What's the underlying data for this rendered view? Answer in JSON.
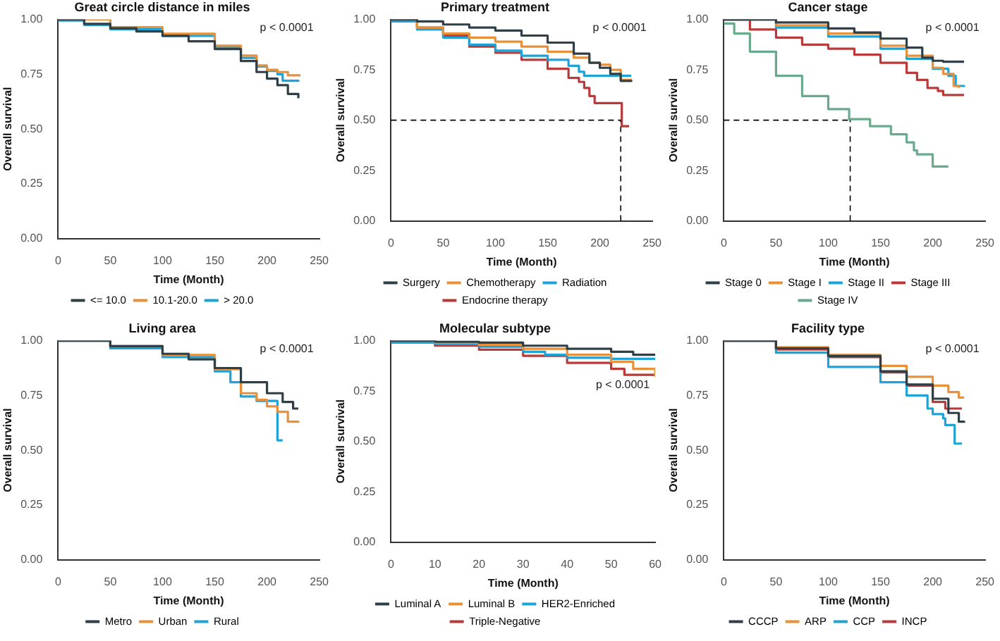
{
  "chart_data": [
    {
      "type": "step",
      "title": "Great circle distance in miles",
      "xlabel": "Time (Month)",
      "ylabel": "Overall survival",
      "xlim": [
        0,
        250
      ],
      "xticks": [
        0,
        50,
        100,
        150,
        200,
        250
      ],
      "ylim": [
        0,
        1
      ],
      "yticks": [
        {
          "value": 0,
          "label": "0.00"
        },
        {
          "value": 0.25,
          "label": "0.25"
        },
        {
          "value": 0.5,
          "label": "0.50"
        },
        {
          "value": 0.75,
          "label": "0.75"
        },
        {
          "value": 1,
          "label": "1.00"
        }
      ],
      "grid": false,
      "legend": "bottom",
      "annotations": [
        "p < 0.0001"
      ],
      "series": [
        {
          "name": "<= 10.0",
          "color": "#2f3f47",
          "x": [
            0,
            25,
            50,
            75,
            100,
            125,
            150,
            175,
            190,
            200,
            210,
            220,
            230
          ],
          "values": [
            1,
            0.98,
            0.96,
            0.945,
            0.925,
            0.9,
            0.865,
            0.81,
            0.76,
            0.73,
            0.7,
            0.66,
            0.64
          ]
        },
        {
          "name": "10.1-20.0",
          "color": "#e8913a",
          "x": [
            0,
            50,
            100,
            150,
            175,
            190,
            200,
            210,
            220,
            232
          ],
          "values": [
            1,
            0.965,
            0.935,
            0.88,
            0.835,
            0.79,
            0.77,
            0.76,
            0.745,
            0.745
          ]
        },
        {
          "name": "> 20.0",
          "color": "#1fa3d6",
          "x": [
            0,
            25,
            50,
            100,
            150,
            175,
            190,
            200,
            210,
            215,
            230
          ],
          "values": [
            0.995,
            0.975,
            0.955,
            0.925,
            0.872,
            0.825,
            0.785,
            0.765,
            0.75,
            0.72,
            0.715
          ]
        }
      ]
    },
    {
      "type": "step",
      "title": "Primary treatment",
      "xlabel": "Time (Month)",
      "ylabel": "Overall survival",
      "xlim": [
        0,
        250
      ],
      "xticks": [
        0,
        50,
        100,
        150,
        200,
        250
      ],
      "ylim": [
        0,
        1
      ],
      "yticks": [
        {
          "value": 0,
          "label": "0.00"
        },
        {
          "value": 0.25,
          "label": "0.25"
        },
        {
          "value": 0.5,
          "label": "0.50"
        },
        {
          "value": 0.75,
          "label": "0.75"
        },
        {
          "value": 1,
          "label": "1.00"
        }
      ],
      "grid": false,
      "legend": "bottom",
      "annotations": [
        "p < 0.0001"
      ],
      "ref_lines": [
        {
          "axis": "y",
          "value": 0.5,
          "line_style": "dashed"
        },
        {
          "axis": "x",
          "value": 220,
          "line_style": "dashed"
        }
      ],
      "series": [
        {
          "name": "Surgery",
          "color": "#2f3f47",
          "x": [
            0,
            25,
            50,
            75,
            100,
            125,
            150,
            175,
            190,
            200,
            210,
            220,
            230
          ],
          "values": [
            1,
            0.99,
            0.975,
            0.96,
            0.945,
            0.92,
            0.885,
            0.83,
            0.785,
            0.76,
            0.73,
            0.695,
            0.69
          ]
        },
        {
          "name": "Chemotherapy",
          "color": "#e8913a",
          "x": [
            0,
            25,
            50,
            75,
            100,
            125,
            150,
            175,
            190,
            200,
            210,
            220,
            230
          ],
          "values": [
            1,
            0.96,
            0.93,
            0.91,
            0.89,
            0.865,
            0.84,
            0.81,
            0.785,
            0.775,
            0.75,
            0.7,
            0.695
          ]
        },
        {
          "name": "Radiation",
          "color": "#1fa3d6",
          "x": [
            0,
            25,
            50,
            75,
            100,
            125,
            150,
            170,
            180,
            185,
            200,
            230
          ],
          "values": [
            0.99,
            0.95,
            0.91,
            0.875,
            0.845,
            0.82,
            0.8,
            0.77,
            0.74,
            0.72,
            0.72,
            0.72
          ]
        },
        {
          "name": "Endocrine therapy",
          "color": "#b83a3a",
          "x": [
            0,
            25,
            50,
            75,
            100,
            125,
            150,
            170,
            180,
            185,
            190,
            195,
            220,
            221,
            228
          ],
          "values": [
            1,
            0.96,
            0.92,
            0.865,
            0.835,
            0.8,
            0.755,
            0.71,
            0.69,
            0.66,
            0.62,
            0.585,
            0.585,
            0.47,
            0.47
          ]
        }
      ]
    },
    {
      "type": "step",
      "title": "Cancer stage",
      "xlabel": "Time (Month)",
      "ylabel": "Overall survival",
      "xlim": [
        0,
        250
      ],
      "xticks": [
        0,
        50,
        100,
        150,
        200,
        250
      ],
      "ylim": [
        0,
        1
      ],
      "yticks": [
        {
          "value": 0,
          "label": "0.00"
        },
        {
          "value": 0.25,
          "label": "0.25"
        },
        {
          "value": 0.5,
          "label": "0.50"
        },
        {
          "value": 0.75,
          "label": "0.75"
        },
        {
          "value": 1,
          "label": "1.00"
        }
      ],
      "grid": false,
      "legend": "bottom",
      "annotations": [
        "p < 0.0001"
      ],
      "ref_lines": [
        {
          "axis": "y",
          "value": 0.5,
          "line_style": "dashed"
        },
        {
          "axis": "x",
          "value": 121,
          "line_style": "dashed"
        }
      ],
      "series": [
        {
          "name": "Stage 0",
          "color": "#2f3f47",
          "x": [
            0,
            50,
            100,
            125,
            150,
            175,
            190,
            200,
            210,
            230
          ],
          "values": [
            1,
            0.985,
            0.955,
            0.935,
            0.905,
            0.86,
            0.81,
            0.795,
            0.79,
            0.79
          ]
        },
        {
          "name": "Stage I",
          "color": "#e8913a",
          "x": [
            0,
            50,
            100,
            150,
            175,
            200,
            210,
            220,
            225
          ],
          "values": [
            1,
            0.97,
            0.93,
            0.87,
            0.82,
            0.76,
            0.73,
            0.67,
            0.66
          ]
        },
        {
          "name": "Stage II",
          "color": "#1fa3d6",
          "x": [
            0,
            50,
            100,
            150,
            175,
            200,
            215,
            222,
            230
          ],
          "values": [
            1,
            0.96,
            0.915,
            0.855,
            0.805,
            0.755,
            0.72,
            0.67,
            0.665
          ]
        },
        {
          "name": "Stage III",
          "color": "#b83a3a",
          "x": [
            0,
            25,
            50,
            75,
            100,
            125,
            150,
            175,
            185,
            195,
            205,
            210,
            230
          ],
          "values": [
            1,
            0.95,
            0.91,
            0.875,
            0.855,
            0.825,
            0.785,
            0.735,
            0.7,
            0.66,
            0.645,
            0.625,
            0.625
          ]
        },
        {
          "name": "Stage IV",
          "color": "#6aaa8c",
          "x": [
            0,
            10,
            25,
            50,
            75,
            100,
            120,
            140,
            160,
            175,
            182,
            185,
            198,
            200,
            215
          ],
          "values": [
            0.98,
            0.93,
            0.84,
            0.72,
            0.62,
            0.555,
            0.505,
            0.47,
            0.43,
            0.39,
            0.35,
            0.33,
            0.33,
            0.27,
            0.27
          ]
        }
      ]
    },
    {
      "type": "step",
      "title": "Living area",
      "xlabel": "Time (Month)",
      "ylabel": "Overall survival",
      "xlim": [
        0,
        250
      ],
      "xticks": [
        0,
        50,
        100,
        150,
        200,
        250
      ],
      "ylim": [
        0,
        1
      ],
      "yticks": [
        {
          "value": 0,
          "label": "0.00"
        },
        {
          "value": 0.25,
          "label": "0.25"
        },
        {
          "value": 0.5,
          "label": "0.50"
        },
        {
          "value": 0.75,
          "label": "0.75"
        },
        {
          "value": 1,
          "label": "1.00"
        }
      ],
      "grid": false,
      "legend": "bottom",
      "annotations": [
        "p < 0.0001"
      ],
      "series": [
        {
          "name": "Metro",
          "color": "#2f3f47",
          "x": [
            0,
            50,
            100,
            125,
            150,
            175,
            200,
            215,
            225,
            230
          ],
          "values": [
            1,
            0.975,
            0.94,
            0.915,
            0.875,
            0.81,
            0.76,
            0.72,
            0.69,
            0.69
          ]
        },
        {
          "name": "Urban",
          "color": "#e8913a",
          "x": [
            0,
            50,
            100,
            150,
            175,
            190,
            200,
            210,
            220,
            230
          ],
          "values": [
            1,
            0.975,
            0.935,
            0.87,
            0.76,
            0.73,
            0.7,
            0.675,
            0.63,
            0.625
          ]
        },
        {
          "name": "Rural",
          "color": "#1fa3d6",
          "x": [
            0,
            50,
            100,
            150,
            165,
            175,
            190,
            209,
            210,
            215
          ],
          "values": [
            1,
            0.965,
            0.925,
            0.86,
            0.81,
            0.745,
            0.725,
            0.725,
            0.545,
            0.545
          ]
        }
      ]
    },
    {
      "type": "step",
      "title": "Molecular subtype",
      "xlabel": "Time (Month)",
      "ylabel": "Overall survival",
      "xlim": [
        0,
        60
      ],
      "xticks": [
        0,
        10,
        20,
        30,
        40,
        50,
        60
      ],
      "ylim": [
        0,
        1
      ],
      "yticks": [
        {
          "value": 0,
          "label": "0.00"
        },
        {
          "value": 0.25,
          "label": "0.25"
        },
        {
          "value": 0.5,
          "label": "0.50"
        },
        {
          "value": 0.75,
          "label": "0.75"
        },
        {
          "value": 1,
          "label": "1.00"
        }
      ],
      "grid": false,
      "legend": "bottom",
      "annotations": [
        "p < 0.0001"
      ],
      "series": [
        {
          "name": "Luminal A",
          "color": "#2f3f47",
          "x": [
            0,
            10,
            20,
            30,
            40,
            50,
            55,
            60
          ],
          "values": [
            1,
            0.995,
            0.99,
            0.975,
            0.96,
            0.945,
            0.93,
            0.925
          ]
        },
        {
          "name": "Luminal B",
          "color": "#e8913a",
          "x": [
            0,
            10,
            20,
            30,
            40,
            50,
            55,
            60
          ],
          "values": [
            1,
            0.99,
            0.98,
            0.96,
            0.93,
            0.895,
            0.86,
            0.82
          ]
        },
        {
          "name": "HER2-Enriched",
          "color": "#1fa3d6",
          "x": [
            0,
            10,
            20,
            30,
            35,
            40,
            50,
            60
          ],
          "values": [
            0.99,
            0.985,
            0.97,
            0.945,
            0.93,
            0.915,
            0.91,
            0.915
          ]
        },
        {
          "name": "Triple-Negative",
          "color": "#b83a3a",
          "x": [
            0,
            10,
            20,
            30,
            40,
            50,
            53,
            60
          ],
          "values": [
            1,
            0.975,
            0.955,
            0.925,
            0.89,
            0.86,
            0.83,
            0.83
          ]
        }
      ]
    },
    {
      "type": "step",
      "title": "Facility type",
      "xlabel": "Time (Month)",
      "ylabel": "Overall survival",
      "xlim": [
        0,
        250
      ],
      "xticks": [
        0,
        50,
        100,
        150,
        200,
        250
      ],
      "ylim": [
        0,
        1
      ],
      "yticks": [
        {
          "value": 0,
          "label": "0.00"
        },
        {
          "value": 0.25,
          "label": "0.25"
        },
        {
          "value": 0.5,
          "label": "0.50"
        },
        {
          "value": 0.75,
          "label": "0.75"
        },
        {
          "value": 1,
          "label": "1.00"
        }
      ],
      "grid": false,
      "legend": "bottom",
      "annotations": [
        "p < 0.0001"
      ],
      "series": [
        {
          "name": "CCCP",
          "color": "#2f3f47",
          "x": [
            0,
            50,
            100,
            150,
            175,
            200,
            215,
            225,
            230
          ],
          "values": [
            1,
            0.965,
            0.93,
            0.86,
            0.8,
            0.735,
            0.67,
            0.63,
            0.625
          ]
        },
        {
          "name": "ARP",
          "color": "#e8913a",
          "x": [
            0,
            50,
            100,
            150,
            175,
            200,
            215,
            225,
            230
          ],
          "values": [
            1,
            0.97,
            0.935,
            0.885,
            0.835,
            0.795,
            0.765,
            0.74,
            0.74
          ]
        },
        {
          "name": "CCP",
          "color": "#1fa3d6",
          "x": [
            0,
            50,
            100,
            150,
            175,
            195,
            200,
            210,
            212,
            220,
            221,
            228
          ],
          "values": [
            1,
            0.945,
            0.88,
            0.81,
            0.75,
            0.69,
            0.665,
            0.645,
            0.615,
            0.615,
            0.53,
            0.53
          ]
        },
        {
          "name": "INCP",
          "color": "#b83a3a",
          "x": [
            0,
            50,
            100,
            150,
            175,
            200,
            212,
            228
          ],
          "values": [
            1,
            0.96,
            0.925,
            0.855,
            0.795,
            0.72,
            0.69,
            0.69
          ]
        }
      ]
    }
  ]
}
